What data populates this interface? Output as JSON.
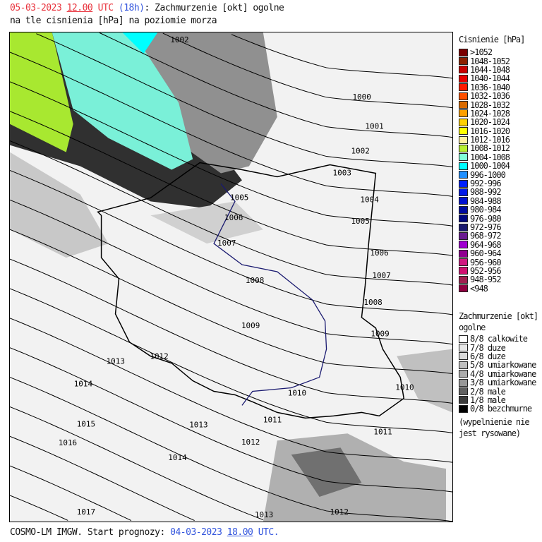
{
  "header": {
    "date": "05-03-2023",
    "time": "12.00",
    "tz": "UTC",
    "lead": "(18h)",
    "title_rest": ": Zachmurzenie [okt] ogolne",
    "line2": "na tle cisnienia [hPa] na poziomie morza"
  },
  "footer": {
    "model": "COSMO-LM IMGW. Start prognozy:",
    "date": "04-03-2023",
    "time": "18.00",
    "tz": "UTC."
  },
  "pressure_legend": {
    "title": "Cisnienie [hPa]",
    "items": [
      {
        "label": ">1052",
        "color": "#7a0000"
      },
      {
        "label": "1048-1052",
        "color": "#8b2000"
      },
      {
        "label": "1044-1048",
        "color": "#c80000"
      },
      {
        "label": "1040-1044",
        "color": "#e80000"
      },
      {
        "label": "1036-1040",
        "color": "#ff1a00"
      },
      {
        "label": "1032-1036",
        "color": "#ff5000"
      },
      {
        "label": "1028-1032",
        "color": "#d96a00"
      },
      {
        "label": "1024-1028",
        "color": "#ffa000"
      },
      {
        "label": "1020-1024",
        "color": "#ffd000"
      },
      {
        "label": "1016-1020",
        "color": "#ffff00"
      },
      {
        "label": "1012-1016",
        "color": "#fff0a0"
      },
      {
        "label": "1008-1012",
        "color": "#b8f030"
      },
      {
        "label": "1004-1008",
        "color": "#80ffd8"
      },
      {
        "label": "1000-1004",
        "color": "#00ffff"
      },
      {
        "label": "996-1000",
        "color": "#2090ff"
      },
      {
        "label": "992-996",
        "color": "#0020ff"
      },
      {
        "label": "988-992",
        "color": "#0018e8"
      },
      {
        "label": "984-988",
        "color": "#0010d0"
      },
      {
        "label": "980-984",
        "color": "#000ca0"
      },
      {
        "label": "976-980",
        "color": "#000880"
      },
      {
        "label": "972-976",
        "color": "#1a1a70"
      },
      {
        "label": "968-972",
        "color": "#6a1a90"
      },
      {
        "label": "964-968",
        "color": "#a000d0"
      },
      {
        "label": "960-964",
        "color": "#900090"
      },
      {
        "label": "956-960",
        "color": "#d01880"
      },
      {
        "label": "952-956",
        "color": "#d01070"
      },
      {
        "label": "948-952",
        "color": "#a02050"
      },
      {
        "label": "<948",
        "color": "#900040"
      }
    ]
  },
  "cloud_legend": {
    "title": "Zachmurzenie [okt]",
    "title2": "ogolne",
    "items": [
      {
        "label": "8/8 calkowite",
        "color": "#ffffff"
      },
      {
        "label": "7/8 duze",
        "color": "#e8e8e8"
      },
      {
        "label": "6/8 duze",
        "color": "#d8d8d8"
      },
      {
        "label": "5/8 umiarkowane",
        "color": "#c0c0c0"
      },
      {
        "label": "4/8 umiarkowane",
        "color": "#acacac"
      },
      {
        "label": "3/8 umiarkowane",
        "color": "#989898"
      },
      {
        "label": "2/8 male",
        "color": "#606060"
      },
      {
        "label": "1/8 male",
        "color": "#3a3a3a"
      },
      {
        "label": "0/8 bezchmurne",
        "color": "#000000"
      }
    ],
    "note1": "(wypelnienie nie",
    "note2": "jest rysowane)"
  },
  "isobar_labels": [
    "1002",
    "1000",
    "1001",
    "1002",
    "1003",
    "1004",
    "1005",
    "1006",
    "1005",
    "1007",
    "1006",
    "1008",
    "1007",
    "1008",
    "1009",
    "1009",
    "1012",
    "1013",
    "1014",
    "1010",
    "1010",
    "1011",
    "1011",
    "1015",
    "1013",
    "1016",
    "1012",
    "1014",
    "1017",
    "1013",
    "1012"
  ]
}
